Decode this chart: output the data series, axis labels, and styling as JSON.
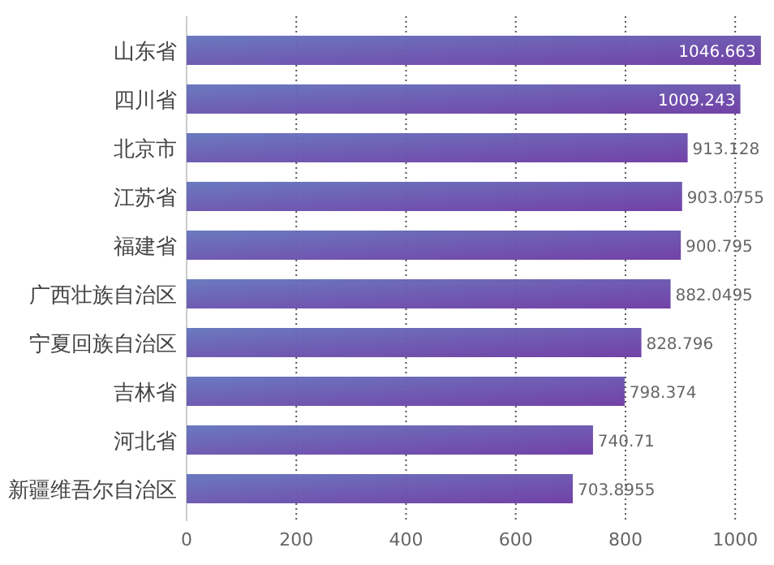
{
  "chart_data": {
    "type": "bar",
    "orientation": "horizontal",
    "categories": [
      "山东省",
      "四川省",
      "北京市",
      "江苏省",
      "福建省",
      "广西壮族自治区",
      "宁夏回族自治区",
      "吉林省",
      "河北省",
      "新疆维吾尔自治区"
    ],
    "values": [
      1046.663,
      1009.243,
      913.128,
      903.0755,
      900.795,
      882.0495,
      828.796,
      798.374,
      740.71,
      703.8955
    ],
    "color": "#6a5ab4",
    "data_labels": true,
    "xlim": [
      0,
      1050
    ],
    "xticks": [
      0,
      200,
      400,
      600,
      800,
      1000
    ],
    "grid": "x"
  }
}
